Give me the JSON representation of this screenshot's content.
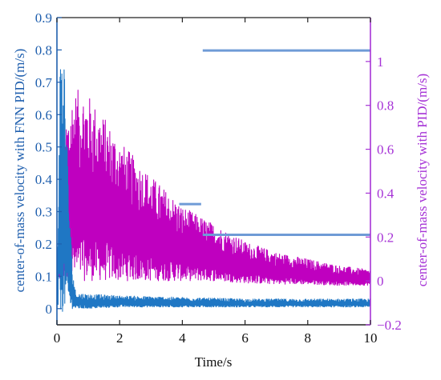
{
  "chart_data": {
    "type": "line",
    "title": "",
    "xlabel": "Time/s",
    "ylabel_left": "center-of-mass velocity with FNN PID/(m/s)",
    "ylabel_right": "center-of-mass velocity with PID/(m/s)",
    "xlim": [
      0,
      10
    ],
    "ylim_left": [
      -0.05,
      0.9
    ],
    "ylim_right": [
      -0.2,
      1.2
    ],
    "x_ticks": [
      "0",
      "2",
      "4",
      "6",
      "8",
      "10"
    ],
    "y_left_ticks": [
      "0",
      "0.1",
      "0.2",
      "0.3",
      "0.4",
      "0.5",
      "0.6",
      "0.7",
      "0.8",
      "0.9"
    ],
    "y_right_ticks": [
      "−0.2",
      "0",
      "0.2",
      "0.4",
      "0.6",
      "0.8",
      "1"
    ],
    "grid": false,
    "series": [
      {
        "axis": "left",
        "color": "#1f77c4",
        "description": "oscillating signal, peak ~0.84 near t=0.2 s, drops below 0.05 by t=0.6 s",
        "envelope_x": [
          0,
          0.05,
          0.1,
          0.15,
          0.2,
          0.25,
          0.3,
          0.4,
          0.5,
          0.6,
          1,
          2,
          4,
          6,
          8,
          10
        ],
        "envelope_upper": [
          0.0,
          0.45,
          0.78,
          0.81,
          0.84,
          0.78,
          0.6,
          0.32,
          0.12,
          0.05,
          0.045,
          0.04,
          0.035,
          0.03,
          0.03,
          0.03
        ],
        "envelope_lower": [
          0.0,
          -0.01,
          -0.015,
          -0.015,
          -0.01,
          -0.005,
          0.0,
          0.0,
          0.0,
          0.0,
          0.0,
          0.005,
          0.005,
          0.005,
          0.005,
          0.005
        ]
      },
      {
        "axis": "right",
        "color": "#bf00bf",
        "description": "noisy oscillating signal, envelope peak ~0.88 near t=0.8 s, decaying to ~0.05 at t=10 s",
        "envelope_x": [
          0,
          0.1,
          0.3,
          0.5,
          0.8,
          1.0,
          1.5,
          2.0,
          3.0,
          4.0,
          5.0,
          6.0,
          7.0,
          8.0,
          9.0,
          10.0
        ],
        "envelope_upper": [
          0.0,
          0.3,
          0.75,
          0.86,
          0.88,
          0.85,
          0.75,
          0.64,
          0.48,
          0.34,
          0.26,
          0.18,
          0.13,
          0.1,
          0.07,
          0.05
        ],
        "envelope_lower": [
          0.0,
          0.0,
          0.0,
          0.0,
          0.0,
          0.0,
          0.0,
          0.0,
          0.0,
          0.0,
          0.0,
          -0.01,
          -0.015,
          -0.015,
          -0.02,
          -0.02
        ]
      }
    ],
    "colors": {
      "left_axis": "#1f5fae",
      "right_axis": "#a633d6",
      "callout": "#6f9bd6"
    }
  }
}
